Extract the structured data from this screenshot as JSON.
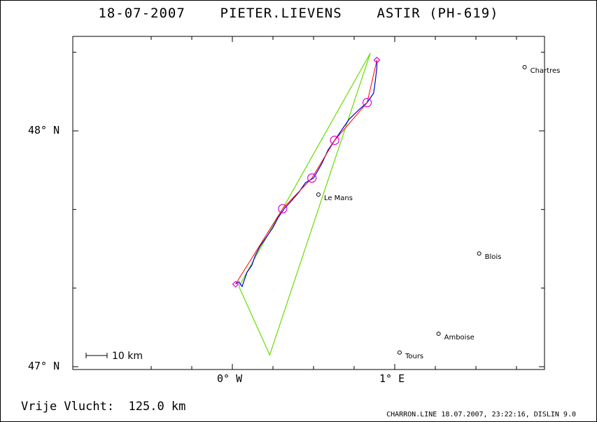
{
  "title": "18-07-2007    PIETER.LIEVENS    ASTIR (PH-619)",
  "axes": {
    "lat_labels": [
      {
        "text": "48° N",
        "lat": 48
      },
      {
        "text": "47° N",
        "lat": 47
      }
    ],
    "lon_labels": [
      {
        "text": "0° W",
        "lon": 0
      },
      {
        "text": "1° E",
        "lon": 1
      }
    ]
  },
  "cities": [
    {
      "name": "Chartres",
      "lon": 1.8,
      "lat": 48.27
    },
    {
      "name": "Le Mans",
      "lon": 0.53,
      "lat": 47.73
    },
    {
      "name": "Blois",
      "lon": 1.52,
      "lat": 47.48
    },
    {
      "name": "Amboise",
      "lon": 1.27,
      "lat": 47.14
    },
    {
      "name": "Tours",
      "lon": 1.03,
      "lat": 47.06
    }
  ],
  "scale_bar": {
    "label": "10 km"
  },
  "task_triangle": [
    {
      "lon": 0.04,
      "lat": 47.34
    },
    {
      "lon": 0.85,
      "lat": 48.33
    },
    {
      "lon": 0.23,
      "lat": 47.05
    },
    {
      "lon": 0.04,
      "lat": 47.34
    }
  ],
  "flight_track": [
    {
      "lon": 0.02,
      "lat": 47.35
    },
    {
      "lon": 0.04,
      "lat": 47.36
    },
    {
      "lon": 0.06,
      "lat": 47.34
    },
    {
      "lon": 0.09,
      "lat": 47.4
    },
    {
      "lon": 0.12,
      "lat": 47.43
    },
    {
      "lon": 0.14,
      "lat": 47.47
    },
    {
      "lon": 0.17,
      "lat": 47.51
    },
    {
      "lon": 0.21,
      "lat": 47.55
    },
    {
      "lon": 0.25,
      "lat": 47.59
    },
    {
      "lon": 0.28,
      "lat": 47.63
    },
    {
      "lon": 0.32,
      "lat": 47.67
    },
    {
      "lon": 0.36,
      "lat": 47.7
    },
    {
      "lon": 0.41,
      "lat": 47.74
    },
    {
      "lon": 0.45,
      "lat": 47.78
    },
    {
      "lon": 0.5,
      "lat": 47.8
    },
    {
      "lon": 0.55,
      "lat": 47.86
    },
    {
      "lon": 0.59,
      "lat": 47.92
    },
    {
      "lon": 0.63,
      "lat": 47.96
    },
    {
      "lon": 0.67,
      "lat": 48.0
    },
    {
      "lon": 0.72,
      "lat": 48.05
    },
    {
      "lon": 0.78,
      "lat": 48.09
    },
    {
      "lon": 0.83,
      "lat": 48.12
    },
    {
      "lon": 0.87,
      "lat": 48.16
    },
    {
      "lon": 0.88,
      "lat": 48.21
    },
    {
      "lon": 0.89,
      "lat": 48.27
    },
    {
      "lon": 0.89,
      "lat": 48.3
    }
  ],
  "optimized_route": [
    {
      "lon": 0.02,
      "lat": 47.35
    },
    {
      "lon": 0.31,
      "lat": 47.67
    },
    {
      "lon": 0.49,
      "lat": 47.8
    },
    {
      "lon": 0.63,
      "lat": 47.96
    },
    {
      "lon": 0.83,
      "lat": 48.12
    },
    {
      "lon": 0.89,
      "lat": 48.3
    }
  ],
  "turnpoints": [
    {
      "lon": 0.31,
      "lat": 47.67
    },
    {
      "lon": 0.49,
      "lat": 47.8
    },
    {
      "lon": 0.63,
      "lat": 47.96
    },
    {
      "lon": 0.83,
      "lat": 48.12
    }
  ],
  "start_finish": [
    {
      "lon": 0.02,
      "lat": 47.35
    },
    {
      "lon": 0.89,
      "lat": 48.3
    }
  ],
  "colors": {
    "task": "#66dd00",
    "track": "#0000cc",
    "route": "#ff0000",
    "turnpoint": "#dd00dd"
  },
  "footer": {
    "free_flight": "Vrije Vlucht:  125.0 km",
    "credit": "CHARRON.LINE 18.07.2007, 23:22:16, DISLIN 9.0"
  }
}
